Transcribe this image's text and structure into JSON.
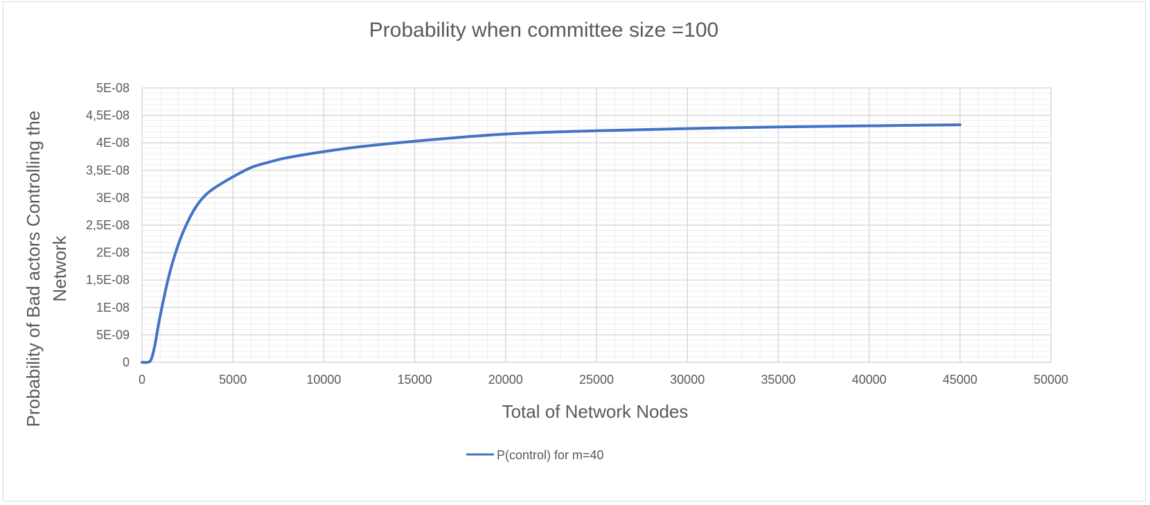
{
  "chart_data": {
    "type": "line",
    "title": "Probability when committee size =100",
    "xlabel": "Total of Network Nodes",
    "ylabel_line1": "Probability of Bad actors Controlling the",
    "ylabel_line2": "Network",
    "xlim": [
      0,
      50000
    ],
    "ylim": [
      0,
      5e-08
    ],
    "x_ticks": [
      "0",
      "5000",
      "10000",
      "15000",
      "20000",
      "25000",
      "30000",
      "35000",
      "40000",
      "45000",
      "50000"
    ],
    "y_ticks": [
      "0",
      "5E-09",
      "1E-08",
      "1,5E-08",
      "2E-08",
      "2,5E-08",
      "3E-08",
      "3,5E-08",
      "4E-08",
      "4,5E-08",
      "5E-08"
    ],
    "grid": "major and minor",
    "legend_position": "bottom",
    "series": [
      {
        "name": "P(control) for m=40",
        "color": "#4472c4",
        "x": [
          0,
          300,
          500,
          700,
          1000,
          1500,
          2000,
          2500,
          3000,
          3500,
          4000,
          5000,
          6000,
          7000,
          8000,
          10000,
          12000,
          15000,
          20000,
          25000,
          30000,
          35000,
          40000,
          45000
        ],
        "y": [
          0,
          0,
          5e-10,
          3e-09,
          8.5e-09,
          1.6e-08,
          2.15e-08,
          2.55e-08,
          2.85e-08,
          3.05e-08,
          3.18e-08,
          3.38e-08,
          3.55e-08,
          3.65e-08,
          3.73e-08,
          3.84e-08,
          3.93e-08,
          4.03e-08,
          4.16e-08,
          4.22e-08,
          4.26e-08,
          4.29e-08,
          4.31e-08,
          4.33e-08
        ]
      }
    ]
  }
}
